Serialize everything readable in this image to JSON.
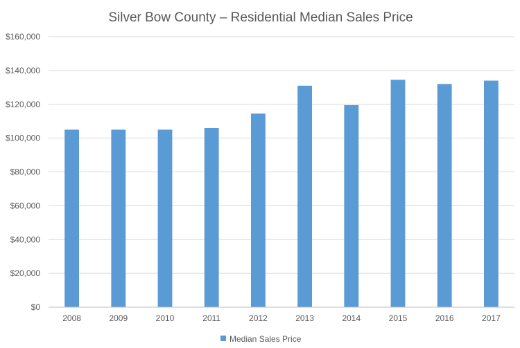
{
  "chart_data": {
    "type": "bar",
    "title": "Silver Bow County – Residential Median Sales Price",
    "categories": [
      "2008",
      "2009",
      "2010",
      "2011",
      "2012",
      "2013",
      "2014",
      "2015",
      "2016",
      "2017"
    ],
    "series": [
      {
        "name": "Median Sales Price",
        "color": "#5b9bd5",
        "values": [
          105000,
          105000,
          105000,
          106000,
          114500,
          131000,
          119500,
          134500,
          132000,
          134000
        ]
      }
    ],
    "ylim": [
      0,
      160000
    ],
    "yticks": [
      0,
      20000,
      40000,
      60000,
      80000,
      100000,
      120000,
      140000,
      160000
    ],
    "ytick_labels": [
      "$0",
      "$20,000",
      "$40,000",
      "$60,000",
      "$80,000",
      "$100,000",
      "$120,000",
      "$140,000",
      "$160,000"
    ],
    "grid": true,
    "legend": "bottom"
  }
}
